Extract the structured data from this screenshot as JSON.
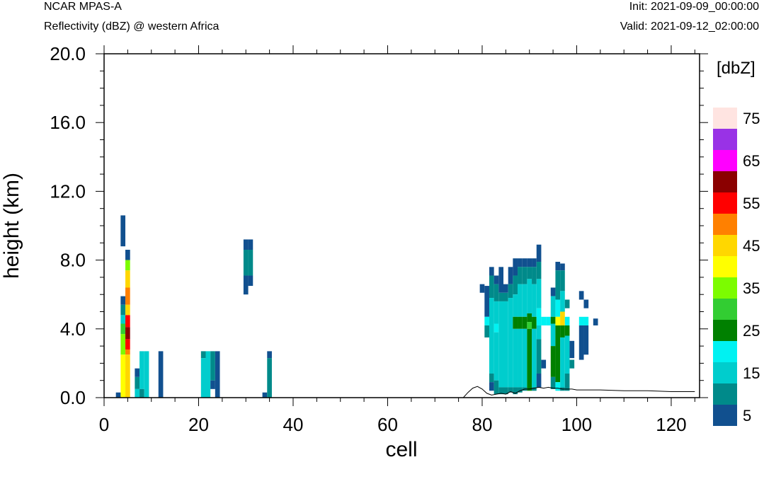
{
  "header": {
    "model": "NCAR MPAS-A",
    "field": "Reflectivity (dBZ) @ western Africa",
    "init": "Init: 2021-09-09_00:00:00",
    "valid": "Valid: 2021-09-12_02:00:00"
  },
  "chart_data": {
    "type": "heatmap",
    "xlabel": "cell",
    "ylabel": "height (km)",
    "xlim": [
      0,
      126
    ],
    "ylim": [
      0,
      20
    ],
    "x_ticks": [
      "0",
      "20",
      "40",
      "60",
      "80",
      "100",
      "120"
    ],
    "y_ticks": [
      "0.0",
      "4.0",
      "8.0",
      "12.0",
      "16.0",
      "20.0"
    ],
    "colorbar": {
      "unit": "[dbZ]",
      "levels": [
        5,
        10,
        15,
        20,
        25,
        30,
        35,
        40,
        45,
        50,
        55,
        60,
        65,
        70,
        75
      ],
      "labels": [
        "5",
        "15",
        "25",
        "35",
        "45",
        "55",
        "65",
        "75"
      ],
      "colors": [
        "#11508f",
        "#008a8a",
        "#00cdcd",
        "#00f2f2",
        "#008000",
        "#32cd32",
        "#7cfc00",
        "#ffff00",
        "#ffd700",
        "#ff8000",
        "#ff0000",
        "#8b0000",
        "#ff00ff",
        "#9932e6",
        "#ffe4e1"
      ]
    },
    "cells": [
      [
        4,
        8.8,
        10.6,
        5
      ],
      [
        5,
        8.0,
        8.6,
        5
      ],
      [
        5,
        7.4,
        8.0,
        35
      ],
      [
        4,
        5.4,
        5.9,
        5
      ],
      [
        4,
        4.8,
        5.4,
        10
      ],
      [
        4,
        4.3,
        4.8,
        15
      ],
      [
        4,
        3.7,
        4.3,
        30
      ],
      [
        4,
        2.5,
        3.7,
        35
      ],
      [
        4,
        0.0,
        2.5,
        40
      ],
      [
        5,
        6.4,
        7.4,
        45
      ],
      [
        5,
        5.4,
        6.4,
        50
      ],
      [
        5,
        4.8,
        5.4,
        45
      ],
      [
        5,
        4.1,
        4.8,
        55
      ],
      [
        5,
        3.4,
        4.1,
        60
      ],
      [
        5,
        2.8,
        3.4,
        55
      ],
      [
        5,
        2.5,
        2.8,
        50
      ],
      [
        5,
        0.0,
        2.5,
        45
      ],
      [
        3,
        0.0,
        0.3,
        5
      ],
      [
        7,
        1.2,
        1.7,
        5
      ],
      [
        7,
        0.5,
        1.2,
        10
      ],
      [
        7,
        0.0,
        0.5,
        15
      ],
      [
        8,
        0.5,
        2.7,
        15
      ],
      [
        8,
        0.0,
        0.5,
        10
      ],
      [
        9,
        0.0,
        2.7,
        15
      ],
      [
        12,
        0.0,
        2.7,
        5
      ],
      [
        21,
        2.3,
        2.7,
        10
      ],
      [
        21,
        0.0,
        2.3,
        15
      ],
      [
        22,
        0.0,
        2.7,
        15
      ],
      [
        23,
        1.0,
        2.7,
        10
      ],
      [
        23,
        0.5,
        1.0,
        5
      ],
      [
        24,
        0.0,
        2.7,
        5
      ],
      [
        30,
        8.6,
        9.2,
        5
      ],
      [
        31,
        8.6,
        9.2,
        5
      ],
      [
        30,
        7.1,
        8.6,
        10
      ],
      [
        31,
        7.1,
        8.6,
        10
      ],
      [
        30,
        6.0,
        7.1,
        5
      ],
      [
        31,
        6.5,
        7.1,
        5
      ],
      [
        34,
        0.0,
        0.3,
        5
      ],
      [
        35,
        2.3,
        2.7,
        5
      ],
      [
        35,
        0.0,
        2.3,
        10
      ],
      [
        80,
        6.1,
        6.6,
        5
      ],
      [
        81,
        4.7,
        6.5,
        5
      ],
      [
        81,
        4.2,
        4.7,
        20
      ],
      [
        81,
        3.5,
        4.2,
        10
      ],
      [
        82,
        7.1,
        7.6,
        5
      ],
      [
        82,
        5.8,
        7.1,
        10
      ],
      [
        82,
        1.4,
        5.8,
        15
      ],
      [
        82,
        0.9,
        1.4,
        10
      ],
      [
        82,
        0.4,
        0.9,
        5
      ],
      [
        83,
        6.6,
        7.1,
        5
      ],
      [
        83,
        5.6,
        6.6,
        10
      ],
      [
        83,
        4.3,
        5.6,
        15
      ],
      [
        83,
        3.8,
        4.3,
        20
      ],
      [
        83,
        1.0,
        3.8,
        15
      ],
      [
        83,
        0.2,
        1.0,
        10
      ],
      [
        84,
        6.1,
        7.6,
        5
      ],
      [
        84,
        5.6,
        6.1,
        10
      ],
      [
        84,
        0.6,
        5.6,
        15
      ],
      [
        84,
        0.2,
        0.6,
        10
      ],
      [
        85,
        6.1,
        6.6,
        5
      ],
      [
        85,
        5.6,
        6.1,
        10
      ],
      [
        85,
        0.6,
        5.6,
        15
      ],
      [
        85,
        0.2,
        0.6,
        10
      ],
      [
        86,
        6.6,
        7.6,
        5
      ],
      [
        86,
        5.8,
        6.6,
        10
      ],
      [
        86,
        0.6,
        5.8,
        15
      ],
      [
        86,
        0.3,
        0.6,
        10
      ],
      [
        87,
        7.1,
        8.1,
        5
      ],
      [
        87,
        6.0,
        7.1,
        10
      ],
      [
        87,
        4.7,
        6.0,
        15
      ],
      [
        87,
        4.0,
        4.7,
        25
      ],
      [
        87,
        0.6,
        4.0,
        15
      ],
      [
        87,
        0.2,
        0.6,
        10
      ],
      [
        88,
        7.6,
        8.1,
        5
      ],
      [
        88,
        6.6,
        7.6,
        10
      ],
      [
        88,
        4.7,
        6.6,
        15
      ],
      [
        88,
        4.0,
        4.7,
        25
      ],
      [
        88,
        0.6,
        4.0,
        15
      ],
      [
        88,
        0.3,
        0.6,
        10
      ],
      [
        89,
        7.6,
        8.1,
        5
      ],
      [
        89,
        6.6,
        7.6,
        10
      ],
      [
        89,
        4.7,
        6.6,
        15
      ],
      [
        89,
        4.0,
        4.7,
        25
      ],
      [
        89,
        0.6,
        4.0,
        15
      ],
      [
        89,
        0.4,
        0.6,
        10
      ],
      [
        90,
        7.6,
        8.1,
        5
      ],
      [
        90,
        6.9,
        7.6,
        10
      ],
      [
        90,
        4.9,
        6.9,
        15
      ],
      [
        90,
        4.4,
        4.9,
        25
      ],
      [
        90,
        4.0,
        4.4,
        30
      ],
      [
        90,
        0.4,
        4.0,
        25
      ],
      [
        91,
        7.6,
        8.1,
        5
      ],
      [
        91,
        6.6,
        7.6,
        10
      ],
      [
        91,
        4.7,
        6.6,
        15
      ],
      [
        91,
        4.0,
        4.7,
        25
      ],
      [
        91,
        0.6,
        4.0,
        15
      ],
      [
        91,
        0.4,
        0.6,
        10
      ],
      [
        92,
        7.9,
        8.9,
        5
      ],
      [
        92,
        6.9,
        7.9,
        10
      ],
      [
        92,
        5.2,
        6.9,
        15
      ],
      [
        92,
        4.2,
        5.2,
        20
      ],
      [
        92,
        3.4,
        4.2,
        15
      ],
      [
        92,
        1.4,
        3.4,
        10
      ],
      [
        92,
        0.6,
        1.4,
        5
      ],
      [
        93,
        4.2,
        4.7,
        20
      ],
      [
        93,
        1.7,
        2.2,
        5
      ],
      [
        94,
        4.2,
        4.7,
        20
      ],
      [
        95,
        5.9,
        6.4,
        5
      ],
      [
        95,
        4.7,
        5.9,
        15
      ],
      [
        95,
        4.3,
        4.7,
        25
      ],
      [
        95,
        3.0,
        4.3,
        15
      ],
      [
        95,
        1.2,
        3.0,
        25
      ],
      [
        95,
        0.5,
        1.2,
        10
      ],
      [
        96,
        7.4,
        7.9,
        5
      ],
      [
        96,
        5.7,
        7.4,
        10
      ],
      [
        96,
        4.7,
        5.7,
        20
      ],
      [
        96,
        4.2,
        4.7,
        40
      ],
      [
        96,
        0.9,
        4.2,
        25
      ],
      [
        96,
        0.4,
        0.9,
        20
      ],
      [
        97,
        7.4,
        7.8,
        5
      ],
      [
        97,
        6.2,
        7.4,
        10
      ],
      [
        97,
        5.0,
        6.2,
        15
      ],
      [
        97,
        4.2,
        5.0,
        45
      ],
      [
        97,
        3.5,
        4.2,
        25
      ],
      [
        97,
        0.6,
        3.5,
        15
      ],
      [
        97,
        0.4,
        0.6,
        10
      ],
      [
        98,
        5.2,
        5.7,
        10
      ],
      [
        98,
        4.2,
        4.7,
        20
      ],
      [
        98,
        3.6,
        4.2,
        25
      ],
      [
        98,
        1.4,
        3.6,
        15
      ],
      [
        98,
        0.4,
        1.4,
        10
      ],
      [
        99,
        2.3,
        3.3,
        5
      ],
      [
        99,
        1.7,
        2.2,
        10
      ],
      [
        101,
        5.7,
        6.2,
        5
      ],
      [
        101,
        4.2,
        4.7,
        20
      ],
      [
        101,
        2.2,
        4.2,
        5
      ],
      [
        102,
        4.2,
        4.7,
        20
      ],
      [
        102,
        5.2,
        5.7,
        5
      ],
      [
        102,
        2.5,
        4.2,
        5
      ],
      [
        104,
        4.2,
        4.6,
        5
      ]
    ],
    "terrain": [
      [
        0,
        0.0
      ],
      [
        76,
        0.0
      ],
      [
        77,
        0.3
      ],
      [
        78,
        0.55
      ],
      [
        79,
        0.65
      ],
      [
        80,
        0.5
      ],
      [
        81,
        0.25
      ],
      [
        82,
        0.15
      ],
      [
        83,
        0.2
      ],
      [
        84,
        0.25
      ],
      [
        85,
        0.2
      ],
      [
        86,
        0.35
      ],
      [
        87,
        0.25
      ],
      [
        88,
        0.4
      ],
      [
        89,
        0.5
      ],
      [
        90,
        0.5
      ],
      [
        91,
        0.55
      ],
      [
        92,
        0.6
      ],
      [
        93,
        0.55
      ],
      [
        94,
        0.6
      ],
      [
        95,
        0.55
      ],
      [
        96,
        0.55
      ],
      [
        97,
        0.5
      ],
      [
        98,
        0.5
      ],
      [
        99,
        0.5
      ],
      [
        100,
        0.45
      ],
      [
        105,
        0.45
      ],
      [
        110,
        0.4
      ],
      [
        115,
        0.4
      ],
      [
        120,
        0.35
      ],
      [
        125,
        0.35
      ]
    ]
  }
}
